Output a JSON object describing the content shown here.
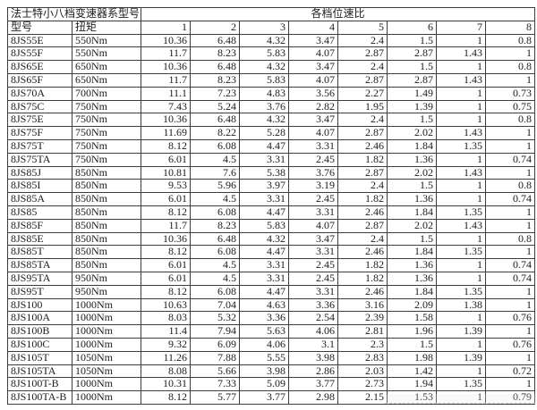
{
  "page": {
    "background": "#ffffff"
  },
  "table": {
    "title": "法士特小八档变速器系型号",
    "ratio_group_label": "各档位速比",
    "column_headers": [
      "型号",
      "扭矩",
      "1",
      "2",
      "3",
      "4",
      "5",
      "6",
      "7",
      "8"
    ],
    "colors": {
      "border": "#3d3d3d",
      "text": "#1c1c1c",
      "background": "#ffffff"
    },
    "rows": [
      {
        "model": "8JS55E",
        "torque": "550Nm",
        "ratios": [
          "10.36",
          "6.48",
          "4.32",
          "3.47",
          "2.4",
          "1.5",
          "1",
          "0.8"
        ]
      },
      {
        "model": "8JS55F",
        "torque": "550Nm",
        "ratios": [
          "11.7",
          "8.23",
          "5.83",
          "4.07",
          "2.87",
          "2.87",
          "1.43",
          "1"
        ]
      },
      {
        "model": "8JS65E",
        "torque": "650Nm",
        "ratios": [
          "10.36",
          "6.48",
          "4.32",
          "3.47",
          "2.4",
          "1.5",
          "1",
          "0.8"
        ]
      },
      {
        "model": "8JS65F",
        "torque": "650Nm",
        "ratios": [
          "11.7",
          "8.23",
          "5.83",
          "4.07",
          "2.87",
          "2.87",
          "1.43",
          "1"
        ]
      },
      {
        "model": "8JS70A",
        "torque": "700Nm",
        "ratios": [
          "11.1",
          "7.23",
          "4.83",
          "3.56",
          "2.27",
          "1.49",
          "1",
          "0.73"
        ]
      },
      {
        "model": "8JS75C",
        "torque": "750Nm",
        "ratios": [
          "7.43",
          "5.24",
          "3.76",
          "2.82",
          "1.95",
          "1.39",
          "1",
          "0.75"
        ]
      },
      {
        "model": "8JS75E",
        "torque": "750Nm",
        "ratios": [
          "10.36",
          "6.48",
          "4.32",
          "3.47",
          "2.4",
          "1.5",
          "1",
          "0.8"
        ]
      },
      {
        "model": "8JS75F",
        "torque": "750Nm",
        "ratios": [
          "11.69",
          "8.22",
          "5.28",
          "4.07",
          "2.87",
          "2.02",
          "1.43",
          "1"
        ]
      },
      {
        "model": "8JS75T",
        "torque": "750Nm",
        "ratios": [
          "8.12",
          "6.08",
          "4.47",
          "3.31",
          "2.46",
          "1.84",
          "1.35",
          "1"
        ]
      },
      {
        "model": "8JS75TA",
        "torque": "750Nm",
        "ratios": [
          "6.01",
          "4.5",
          "3.31",
          "2.45",
          "1.82",
          "1.36",
          "1",
          "0.74"
        ]
      },
      {
        "model": "8JS85J",
        "torque": "850Nm",
        "ratios": [
          "10.81",
          "7.6",
          "5.38",
          "3.76",
          "2.87",
          "2.02",
          "1.43",
          "1"
        ]
      },
      {
        "model": "8JS85I",
        "torque": "850Nm",
        "ratios": [
          "9.53",
          "5.96",
          "3.97",
          "3.19",
          "2.4",
          "1.5",
          "1",
          "0.8"
        ]
      },
      {
        "model": "8JS85A",
        "torque": "850Nm",
        "ratios": [
          "6.01",
          "4.5",
          "3.31",
          "2.45",
          "1.82",
          "1.36",
          "1",
          "0.74"
        ]
      },
      {
        "model": "8JS85",
        "torque": "850Nm",
        "ratios": [
          "8.12",
          "6.08",
          "4.47",
          "3.31",
          "2.46",
          "1.84",
          "1.35",
          "1"
        ]
      },
      {
        "model": "8JS85F",
        "torque": "850Nm",
        "ratios": [
          "11.7",
          "8.23",
          "5.83",
          "4.07",
          "2.87",
          "2.02",
          "1.43",
          "1"
        ]
      },
      {
        "model": "8JS85E",
        "torque": "850Nm",
        "ratios": [
          "10.36",
          "6.48",
          "4.32",
          "3.47",
          "2.4",
          "1.5",
          "1",
          "0.8"
        ]
      },
      {
        "model": "8JS85T",
        "torque": "850Nm",
        "ratios": [
          "8.12",
          "6.08",
          "4.47",
          "3.31",
          "2.46",
          "1.84",
          "1.35",
          "1"
        ]
      },
      {
        "model": "8JS85TA",
        "torque": "850Nm",
        "ratios": [
          "6.01",
          "4.5",
          "3.31",
          "2.45",
          "1.82",
          "1.36",
          "1",
          "0.74"
        ]
      },
      {
        "model": "8JS95TA",
        "torque": "950Nm",
        "ratios": [
          "6.01",
          "4.5",
          "3.31",
          "2.45",
          "1.82",
          "1.36",
          "1",
          "0.74"
        ]
      },
      {
        "model": "8JS95T",
        "torque": "950Nm",
        "ratios": [
          "8.12",
          "6.08",
          "4.47",
          "3.31",
          "2.46",
          "1.84",
          "1.35",
          "1"
        ]
      },
      {
        "model": "8JS100",
        "torque": "1000Nm",
        "ratios": [
          "10.63",
          "7.04",
          "4.63",
          "3.36",
          "3.16",
          "2.09",
          "1.38",
          "1"
        ]
      },
      {
        "model": "8JS100A",
        "torque": "1000Nm",
        "ratios": [
          "8.03",
          "5.32",
          "3.36",
          "2.54",
          "2.39",
          "1.58",
          "1",
          "0.76"
        ]
      },
      {
        "model": "8JS100B",
        "torque": "1000Nm",
        "ratios": [
          "11.4",
          "7.94",
          "5.63",
          "4.06",
          "2.81",
          "1.96",
          "1.39",
          "1"
        ]
      },
      {
        "model": "8JS100C",
        "torque": "1000Nm",
        "ratios": [
          "9.32",
          "6.09",
          "4.06",
          "3.1",
          "2.3",
          "1.5",
          "1",
          "0.76"
        ]
      },
      {
        "model": "8JS105T",
        "torque": "1050Nm",
        "ratios": [
          "11.26",
          "7.88",
          "5.55",
          "3.98",
          "2.83",
          "1.98",
          "1.39",
          "1"
        ]
      },
      {
        "model": "8JS105TA",
        "torque": "1050Nm",
        "ratios": [
          "8.08",
          "5.66",
          "3.98",
          "2.86",
          "2.03",
          "1.42",
          "1",
          "0.72"
        ]
      },
      {
        "model": "8JS100T-B",
        "torque": "1000Nm",
        "ratios": [
          "10.31",
          "7.33",
          "5.09",
          "3.77",
          "2.73",
          "1.94",
          "1.35",
          "1"
        ]
      },
      {
        "model": "8JS100TA-B",
        "torque": "1000Nm",
        "ratios": [
          "8.12",
          "5.77",
          "3.77",
          "2.98",
          "2.15",
          "1.53",
          "1",
          "0.79"
        ]
      }
    ]
  }
}
